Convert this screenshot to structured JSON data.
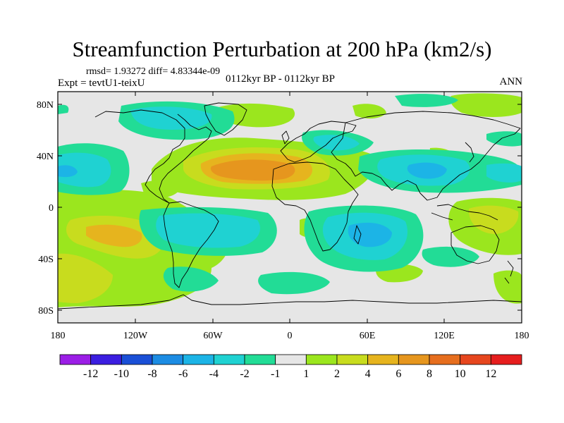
{
  "title": "Streamfunction Perturbation at 200 hPa (km2/s)",
  "stats": "rmsd= 1.93272  diff= 4.83344e-09",
  "expt": "Expt = tevtU1-teixU",
  "period": "0112kyr BP - 0112kyr BP",
  "season": "ANN",
  "map": {
    "lat_ticks": [
      "80N",
      "40N",
      "0",
      "40S",
      "80S"
    ],
    "lon_ticks": [
      "180",
      "120W",
      "60W",
      "0",
      "60E",
      "120E",
      "180"
    ],
    "lat_range": [
      -90,
      90
    ],
    "lon_range": [
      -180,
      180
    ]
  },
  "colorbar": {
    "labels": [
      "-12",
      "-10",
      "-8",
      "-6",
      "-4",
      "-2",
      "-1",
      "1",
      "2",
      "4",
      "6",
      "8",
      "10",
      "12"
    ],
    "colors": [
      "#9b1ee6",
      "#3b1ee0",
      "#1a4fd6",
      "#1c8ce3",
      "#1cb4e6",
      "#1fd2d2",
      "#22dc96",
      "#e6e6e6",
      "#9be61e",
      "#c8dc1e",
      "#e6b41e",
      "#e6961e",
      "#e66e1e",
      "#e6461e",
      "#e61e1e"
    ]
  },
  "colors": {
    "neutral": "#e6e6e6",
    "pos2": "#9be61e",
    "pos4": "#c8dc1e",
    "pos6": "#e6b41e",
    "pos8": "#e6961e",
    "neg1": "#22dc96",
    "neg2": "#1fd2d2",
    "neg4": "#1cb4e6"
  }
}
